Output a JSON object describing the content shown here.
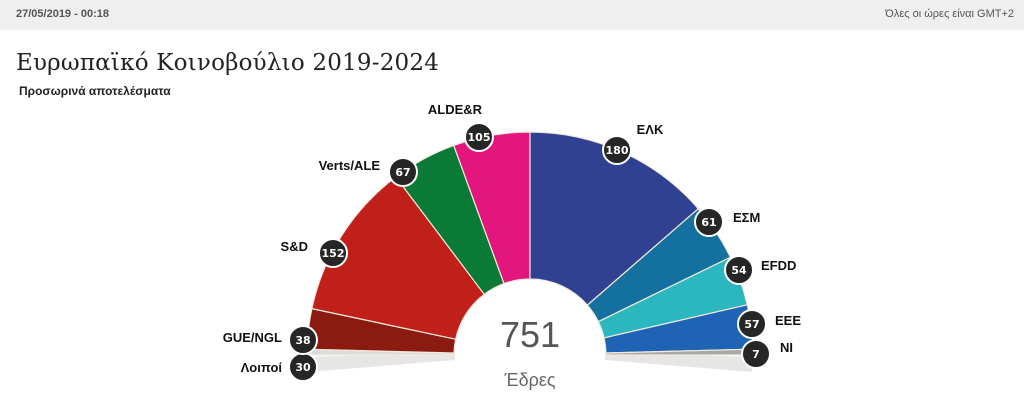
{
  "topbar": {
    "timestamp": "27/05/2019 - 00:18",
    "timezone_note": "Όλες οι ώρες είναι GMT+2"
  },
  "header": {
    "title": "Ευρωπαϊκό Κοινοβούλιο 2019-2024",
    "subtitle": "Προσωρινά αποτελέσματα"
  },
  "center": {
    "total": "751",
    "label": "Έδρες"
  },
  "chart_data": {
    "type": "pie",
    "subtype": "parliament-semicircle",
    "title": "Ευρωπαϊκό Κοινοβούλιο 2019-2024",
    "subtitle": "Προσωρινά αποτελέσματα",
    "total": 751,
    "total_label": "Έδρες",
    "categories": [
      "Λοιποί",
      "GUE/NGL",
      "S&D",
      "Verts/ALE",
      "ALDE&R",
      "ΕΛΚ",
      "ΕΣΜ",
      "EFDD",
      "EEE",
      "NI"
    ],
    "values": [
      30,
      38,
      152,
      67,
      105,
      180,
      61,
      54,
      57,
      7
    ],
    "colors": [
      "#d9d9d9",
      "#8b1a10",
      "#c1201a",
      "#0b7a36",
      "#e3167d",
      "#314191",
      "#14709e",
      "#2bb7c0",
      "#1f64b4",
      "#a8a8a8"
    ]
  },
  "parties": [
    {
      "name": "Λοιποί",
      "seats": "30",
      "color": "#dcdcdc"
    },
    {
      "name": "GUE/NGL",
      "seats": "38",
      "color": "#8b1a10"
    },
    {
      "name": "S&D",
      "seats": "152",
      "color": "#c1201a"
    },
    {
      "name": "Verts/ALE",
      "seats": "67",
      "color": "#0b7a36"
    },
    {
      "name": "ALDE&R",
      "seats": "105",
      "color": "#e3167d"
    },
    {
      "name": "ΕΛΚ",
      "seats": "180",
      "color": "#314191"
    },
    {
      "name": "ΕΣΜ",
      "seats": "61",
      "color": "#14709e"
    },
    {
      "name": "EFDD",
      "seats": "54",
      "color": "#2bb7c0"
    },
    {
      "name": "EEE",
      "seats": "57",
      "color": "#1f64b4"
    },
    {
      "name": "NI",
      "seats": "7",
      "color": "#a8a8a8"
    }
  ]
}
